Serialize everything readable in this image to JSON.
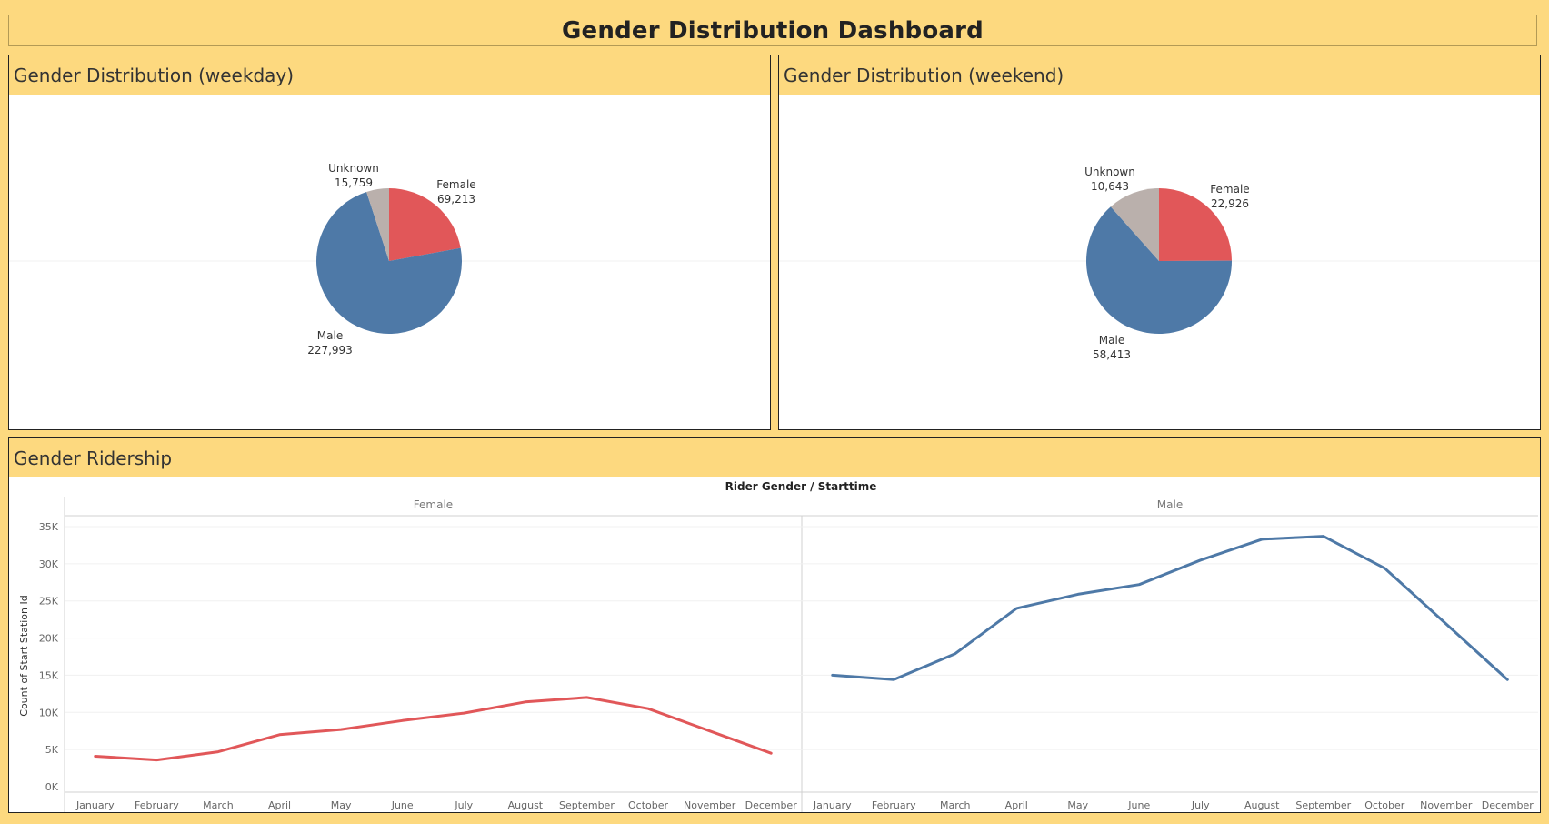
{
  "dashboard": {
    "title": "Gender Distribution Dashboard"
  },
  "colors": {
    "female": "#e15759",
    "male": "#4e79a7",
    "unknown": "#bab0ac",
    "background": "#fdd97f"
  },
  "chart_data": [
    {
      "type": "pie",
      "title": "Gender Distribution (weekday)",
      "slices": [
        {
          "label": "Female",
          "value": 69213,
          "display": "69,213"
        },
        {
          "label": "Male",
          "value": 227993,
          "display": "227,993"
        },
        {
          "label": "Unknown",
          "value": 15759,
          "display": "15,759"
        }
      ]
    },
    {
      "type": "pie",
      "title": "Gender Distribution (weekend)",
      "slices": [
        {
          "label": "Female",
          "value": 22926,
          "display": "22,926"
        },
        {
          "label": "Male",
          "value": 58413,
          "display": "58,413"
        },
        {
          "label": "Unknown",
          "value": 10643,
          "display": "10,643"
        }
      ]
    },
    {
      "type": "line",
      "title": "Gender Ridership",
      "header": "Rider Gender / Starttime",
      "ylabel": "Count of Start Station Id",
      "ylim": [
        0,
        35000
      ],
      "yticks": [
        {
          "value": 0,
          "label": "0K"
        },
        {
          "value": 5000,
          "label": "5K"
        },
        {
          "value": 10000,
          "label": "10K"
        },
        {
          "value": 15000,
          "label": "15K"
        },
        {
          "value": 20000,
          "label": "20K"
        },
        {
          "value": 25000,
          "label": "25K"
        },
        {
          "value": 30000,
          "label": "30K"
        },
        {
          "value": 35000,
          "label": "35K"
        }
      ],
      "categories": [
        "January",
        "February",
        "March",
        "April",
        "May",
        "June",
        "July",
        "August",
        "September",
        "October",
        "November",
        "December"
      ],
      "series": [
        {
          "name": "Female",
          "values": [
            4100,
            3600,
            4700,
            7000,
            7700,
            8900,
            9900,
            11400,
            12000,
            10500,
            7500,
            4500
          ]
        },
        {
          "name": "Male",
          "values": [
            15000,
            14400,
            17900,
            24000,
            25900,
            27200,
            30500,
            33300,
            33700,
            29400,
            21900,
            14400
          ]
        }
      ]
    }
  ]
}
